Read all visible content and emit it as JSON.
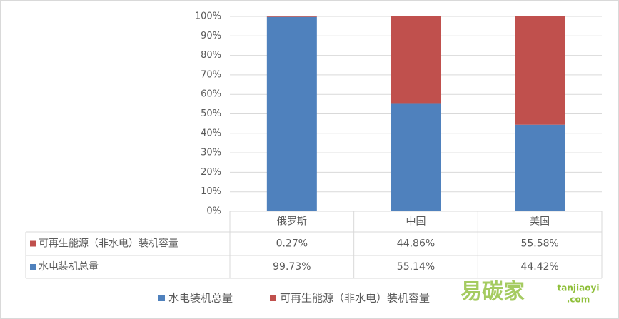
{
  "chart_data": {
    "type": "stacked_bar",
    "categories": [
      "俄罗斯",
      "中国",
      "美国"
    ],
    "series": [
      {
        "name": "水电装机总量",
        "color": "#4f81bd",
        "values": [
          99.73,
          55.14,
          44.42
        ],
        "value_labels": [
          "99.73%",
          "55.14%",
          "44.42%"
        ]
      },
      {
        "name": "可再生能源（非水电）装机容量",
        "color": "#c0504d",
        "values": [
          0.27,
          44.86,
          55.58
        ],
        "value_labels": [
          "0.27%",
          "44.86%",
          "55.58%"
        ]
      }
    ],
    "ylim": [
      0,
      100
    ],
    "yticks": [
      {
        "value": 0,
        "label": "0%"
      },
      {
        "value": 10,
        "label": "10%"
      },
      {
        "value": 20,
        "label": "20%"
      },
      {
        "value": 30,
        "label": "30%"
      },
      {
        "value": 40,
        "label": "40%"
      },
      {
        "value": 50,
        "label": "50%"
      },
      {
        "value": 60,
        "label": "60%"
      },
      {
        "value": 70,
        "label": "70%"
      },
      {
        "value": 80,
        "label": "80%"
      },
      {
        "value": 90,
        "label": "90%"
      },
      {
        "value": 100,
        "label": "100%"
      }
    ],
    "grid": true,
    "legend": "bottom",
    "watermark": {
      "name": "易碳家",
      "site": "tanjiaoyi",
      "domain": ".com"
    }
  }
}
